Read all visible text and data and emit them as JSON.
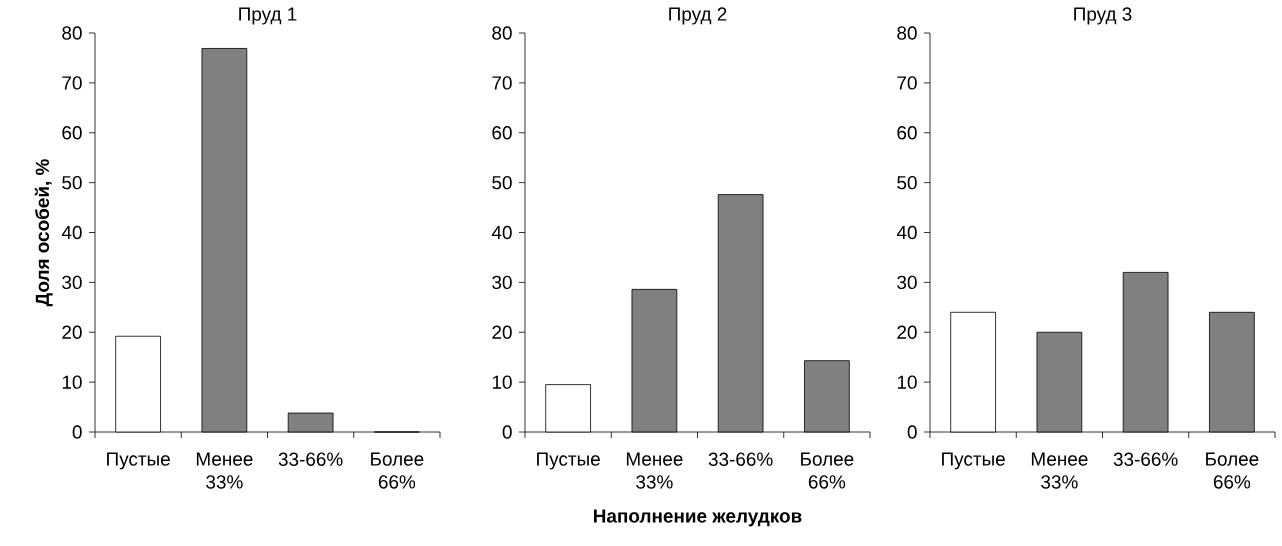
{
  "chart_data": [
    {
      "type": "bar",
      "title": "Пруд 1",
      "ylabel": "Доля особей, %",
      "categories": [
        "Пустые",
        "Менее 33%",
        "33-66%",
        "Более 66%"
      ],
      "values": [
        19.2,
        76.9,
        3.8,
        0
      ],
      "colors": [
        "#ffffff",
        "#808080",
        "#808080",
        "#808080"
      ],
      "ylim": [
        0,
        80
      ],
      "yticks": [
        0,
        10,
        20,
        30,
        40,
        50,
        60,
        70,
        80
      ]
    },
    {
      "type": "bar",
      "title": "Пруд 2",
      "xlabel": "Наполнение желудков",
      "categories": [
        "Пустые",
        "Менее 33%",
        "33-66%",
        "Более 66%"
      ],
      "values": [
        9.5,
        28.6,
        47.6,
        14.3
      ],
      "colors": [
        "#ffffff",
        "#808080",
        "#808080",
        "#808080"
      ],
      "ylim": [
        0,
        80
      ],
      "yticks": [
        0,
        10,
        20,
        30,
        40,
        50,
        60,
        70,
        80
      ]
    },
    {
      "type": "bar",
      "title": "Пруд 3",
      "categories": [
        "Пустые",
        "Менее 33%",
        "33-66%",
        "Более 66%"
      ],
      "values": [
        24,
        20,
        32,
        24
      ],
      "colors": [
        "#ffffff",
        "#808080",
        "#808080",
        "#808080"
      ],
      "ylim": [
        0,
        80
      ],
      "yticks": [
        0,
        10,
        20,
        30,
        40,
        50,
        60,
        70,
        80
      ]
    }
  ]
}
